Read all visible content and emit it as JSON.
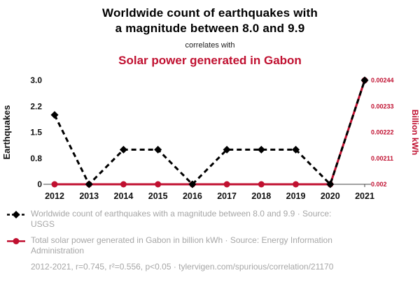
{
  "header": {
    "title_line1": "Worldwide count of earthquakes with",
    "title_line2": "a magnitude between 8.0 and 9.9",
    "connector": "correlates with",
    "solar_title": "Solar power generated in Gabon"
  },
  "colors": {
    "earthquakes": "#000000",
    "solar": "#c01030",
    "legend_text": "#a6a6a6"
  },
  "chart_data": {
    "type": "line",
    "title": "Worldwide count of earthquakes with a magnitude between 8.0 and 9.9 correlates with Solar power generated in Gabon",
    "x": [
      2012,
      2013,
      2014,
      2015,
      2016,
      2017,
      2018,
      2019,
      2020,
      2021
    ],
    "x_tick_labels": [
      "2012",
      "2013",
      "2014",
      "2015",
      "2016",
      "2017",
      "2018",
      "2019",
      "2020",
      "2021"
    ],
    "series": [
      {
        "name": "Worldwide count of earthquakes with a magnitude between 8.0 and 9.9",
        "axis": "left",
        "color": "#000000",
        "line_style": "dashed",
        "marker": "diamond",
        "values": [
          2,
          0,
          1,
          1,
          0,
          1,
          1,
          1,
          0,
          3
        ]
      },
      {
        "name": "Total solar power generated in Gabon in billion kWh",
        "axis": "right",
        "color": "#c01030",
        "line_style": "solid",
        "marker": "circle",
        "values": [
          0.002,
          0.002,
          0.002,
          0.002,
          0.002,
          0.002,
          0.002,
          0.002,
          0.002,
          0.00244
        ]
      }
    ],
    "left_axis": {
      "label": "Earthquakes",
      "range": [
        0,
        3
      ],
      "tick_labels": [
        "0",
        "0.8",
        "1.5",
        "2.2",
        "3.0"
      ]
    },
    "right_axis": {
      "label": "Billion kWh",
      "range": [
        0.002,
        0.00244
      ],
      "tick_labels": [
        "0.002",
        "0.00211",
        "0.00222",
        "0.00233",
        "0.00244"
      ]
    },
    "grid": false,
    "legend_position": "bottom"
  },
  "legend": {
    "items": [
      {
        "label": "Worldwide count of earthquakes with a magnitude between 8.0 and 9.9 · Source: USGS"
      },
      {
        "label": "Total solar power generated in Gabon in billion kWh · Source: Energy Information Administration"
      }
    ],
    "footer": "2012-2021, r=0.745, r²=0.556, p<0.05 · tylervigen.com/spurious/correlation/21170"
  }
}
